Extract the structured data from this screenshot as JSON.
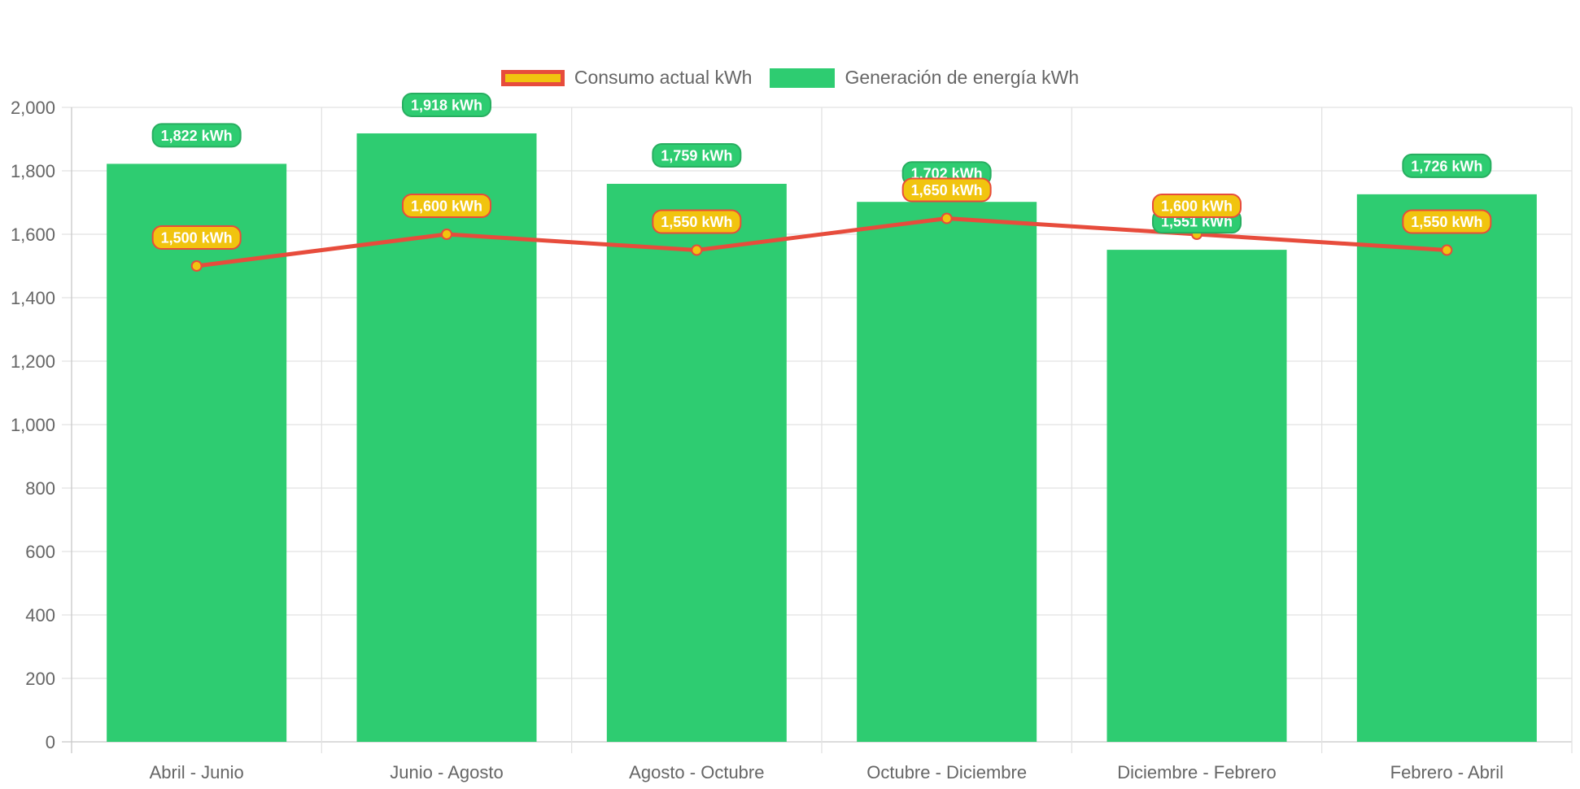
{
  "chart_data": {
    "type": "bar",
    "categories": [
      "Abril - Junio",
      "Junio - Agosto",
      "Agosto - Octubre",
      "Octubre - Diciembre",
      "Diciembre - Febrero",
      "Febrero - Abril"
    ],
    "series": [
      {
        "name": "Consumo actual kWh",
        "type": "line",
        "values": [
          1500,
          1600,
          1550,
          1650,
          1600,
          1550
        ],
        "labels": [
          "1,500 kWh",
          "1,600 kWh",
          "1,550 kWh",
          "1,650 kWh",
          "1,600 kWh",
          "1,550 kWh"
        ],
        "color": "#e74c3c",
        "fill_color": "#f1c40f"
      },
      {
        "name": "Generación de energía kWh",
        "type": "bar",
        "values": [
          1822,
          1918,
          1759,
          1702,
          1551,
          1726
        ],
        "labels": [
          "1,822 kWh",
          "1,918 kWh",
          "1,759 kWh",
          "1,702 kWh",
          "1,551 kWh",
          "1,726 kWh"
        ],
        "color": "#2ecc71"
      }
    ],
    "ylim": [
      0,
      2000
    ],
    "yticks": [
      "0",
      "200",
      "400",
      "600",
      "800",
      "1,000",
      "1,200",
      "1,400",
      "1,600",
      "1,800",
      "2,000"
    ],
    "grid": true,
    "legend_position": "top-center"
  }
}
